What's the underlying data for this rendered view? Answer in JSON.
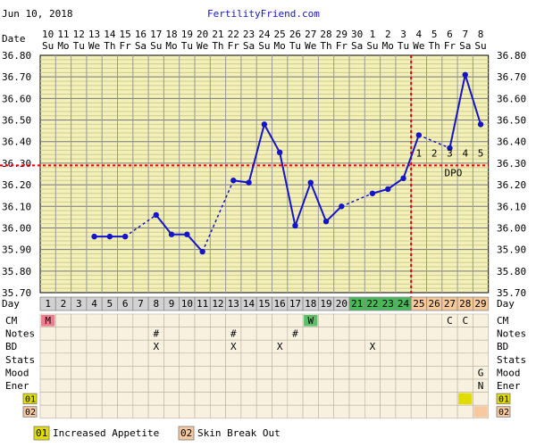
{
  "header": {
    "date": "Jun 10, 2018",
    "site": "FertilityFriend.com"
  },
  "chart_data": {
    "type": "line",
    "title": "",
    "xlabel": "Day",
    "ylabel": "",
    "row_date_label": "Date",
    "dates": [
      "10",
      "11",
      "12",
      "13",
      "14",
      "15",
      "16",
      "17",
      "18",
      "19",
      "20",
      "21",
      "22",
      "23",
      "24",
      "25",
      "26",
      "27",
      "28",
      "29",
      "30",
      "1",
      "2",
      "3",
      "4",
      "5",
      "6",
      "7",
      "8"
    ],
    "weekdays": [
      "Su",
      "Mo",
      "Tu",
      "We",
      "Th",
      "Fr",
      "Sa",
      "Su",
      "Mo",
      "Tu",
      "We",
      "Th",
      "Fr",
      "Sa",
      "Su",
      "Mo",
      "Tu",
      "We",
      "Th",
      "Fr",
      "Sa",
      "Su",
      "Mo",
      "Tu",
      "We",
      "Th",
      "Fr",
      "Sa",
      "Su"
    ],
    "cycle_days": [
      1,
      2,
      3,
      4,
      5,
      6,
      7,
      8,
      9,
      10,
      11,
      12,
      13,
      14,
      15,
      16,
      17,
      18,
      19,
      20,
      21,
      22,
      23,
      24,
      25,
      26,
      27,
      28,
      29
    ],
    "temperatures": [
      null,
      null,
      null,
      35.96,
      35.96,
      35.96,
      null,
      36.06,
      35.97,
      35.97,
      35.89,
      null,
      36.22,
      36.21,
      36.48,
      36.35,
      36.01,
      36.21,
      36.03,
      36.1,
      null,
      36.16,
      36.18,
      36.23,
      36.43,
      null,
      36.37,
      36.71,
      36.48
    ],
    "ylim": [
      35.7,
      36.8
    ],
    "yticks": [
      "35.70",
      "35.80",
      "35.90",
      "36.00",
      "36.10",
      "36.20",
      "36.30",
      "36.40",
      "36.50",
      "36.60",
      "36.70",
      "36.80"
    ],
    "coverline": 36.29,
    "ovulation_day": 24,
    "dpo_labels": [
      "1",
      "2",
      "3",
      "4",
      "5"
    ],
    "dpo_text": "DPO",
    "grid": true,
    "colors": {
      "plot_bg": "#f3f0b8",
      "line": "#1414c8",
      "marker": "#1414c8",
      "coverline": "#e00000",
      "fertile": "#3fbf56",
      "luteal": "#f6c99a",
      "day_default": "#d2d2d2",
      "row_bg": "#f8f1e0",
      "menses": "#ec7e91",
      "cm_watery": "#5cbf6a",
      "sym1": "#e0dc00",
      "sym2": "#f6c9a0"
    },
    "day_colors": [
      "#d2d2d2",
      "#d2d2d2",
      "#d2d2d2",
      "#d2d2d2",
      "#d2d2d2",
      "#d2d2d2",
      "#d2d2d2",
      "#d2d2d2",
      "#d2d2d2",
      "#d2d2d2",
      "#d2d2d2",
      "#d2d2d2",
      "#d2d2d2",
      "#d2d2d2",
      "#d2d2d2",
      "#d2d2d2",
      "#d2d2d2",
      "#d2d2d2",
      "#d2d2d2",
      "#d2d2d2",
      "#49b85a",
      "#49b85a",
      "#49b85a",
      "#49b85a",
      "#f6c99a",
      "#f6c99a",
      "#f6c99a",
      "#f6c99a",
      "#f6c99a"
    ],
    "rows": [
      {
        "label": "CM",
        "cells": [
          {
            "day": 1,
            "text": "M",
            "color": "#ec7e91"
          },
          {
            "day": 18,
            "text": "W",
            "color": "#5cbf6a"
          },
          {
            "day": 27,
            "text": "C"
          },
          {
            "day": 28,
            "text": "C"
          }
        ]
      },
      {
        "label": "Notes",
        "cells": [
          {
            "day": 8,
            "text": "#"
          },
          {
            "day": 13,
            "text": "#"
          },
          {
            "day": 17,
            "text": "#"
          }
        ]
      },
      {
        "label": "BD",
        "cells": [
          {
            "day": 8,
            "text": "X"
          },
          {
            "day": 13,
            "text": "X"
          },
          {
            "day": 16,
            "text": "X"
          },
          {
            "day": 22,
            "text": "X"
          }
        ]
      },
      {
        "label": "Stats",
        "cells": []
      },
      {
        "label": "Mood",
        "cells": [
          {
            "day": 29,
            "text": "G"
          }
        ]
      },
      {
        "label": "Ener",
        "cells": [
          {
            "day": 29,
            "text": "N"
          }
        ]
      },
      {
        "label": "01",
        "cells": [
          {
            "day": 28,
            "text": "",
            "color": "#e0dc00"
          }
        ]
      },
      {
        "label": "02",
        "cells": [
          {
            "day": 29,
            "text": "",
            "color": "#f6c9a0"
          }
        ]
      }
    ]
  },
  "legend": [
    {
      "code": "01",
      "text": "Increased Appetite",
      "color": "#e0dc00"
    },
    {
      "code": "02",
      "text": "Skin Break Out",
      "color": "#f6c9a0"
    }
  ]
}
